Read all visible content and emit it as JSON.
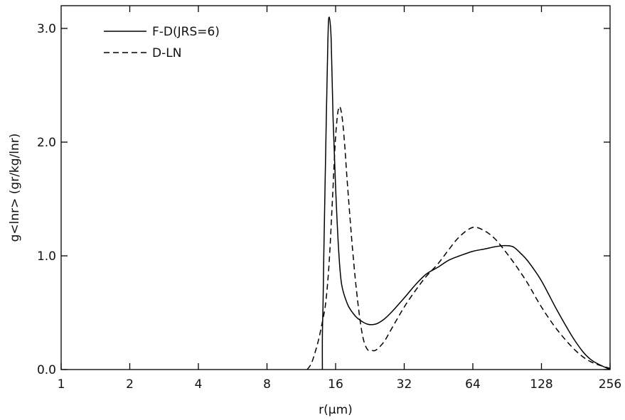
{
  "chart_data": {
    "type": "line",
    "xlabel": "r(μm)",
    "ylabel": "g<lnr> (gr/kg/lnr)",
    "xscale": "log2",
    "xlim": [
      1,
      256
    ],
    "ylim": [
      0,
      3.2
    ],
    "x_ticks": [
      1,
      2,
      4,
      8,
      16,
      32,
      64,
      128,
      256
    ],
    "x_tick_labels": [
      "1",
      "2",
      "4",
      "8",
      "16",
      "32",
      "64",
      "128",
      "256"
    ],
    "y_ticks": [
      0,
      1,
      2,
      3
    ],
    "y_tick_labels": [
      "0.0",
      "1.0",
      "2.0",
      "3.0"
    ],
    "grid": false,
    "legend_position": "top-left",
    "series": [
      {
        "name": "F-D(JRS=6)",
        "style": "solid",
        "color": "#000000",
        "x": [
          14.0,
          14.0,
          14.1,
          14.2,
          14.5,
          14.8,
          15.0,
          15.3,
          15.6,
          16.0,
          16.5,
          17.0,
          18.0,
          19.0,
          20.0,
          22.0,
          24.0,
          26.0,
          28.0,
          32.0,
          36.0,
          40.0,
          45.0,
          50.0,
          56.0,
          64.0,
          72.0,
          80.0,
          88.0,
          96.0,
          104.0,
          112.0,
          128.0,
          150.0,
          180.0,
          210.0,
          256.0
        ],
        "y": [
          0.0,
          0.3,
          0.6,
          1.0,
          2.0,
          2.9,
          3.1,
          2.9,
          2.2,
          1.6,
          1.05,
          0.75,
          0.58,
          0.5,
          0.45,
          0.4,
          0.4,
          0.44,
          0.5,
          0.63,
          0.75,
          0.84,
          0.9,
          0.96,
          1.0,
          1.04,
          1.06,
          1.08,
          1.09,
          1.08,
          1.02,
          0.95,
          0.78,
          0.52,
          0.25,
          0.09,
          0.0
        ]
      },
      {
        "name": "D-LN",
        "style": "dashed",
        "color": "#000000",
        "x": [
          12.0,
          12.5,
          13.0,
          13.5,
          14.0,
          14.5,
          15.0,
          15.5,
          16.0,
          16.5,
          17.0,
          17.5,
          18.0,
          19.0,
          20.0,
          21.0,
          22.0,
          23.0,
          24.0,
          26.0,
          28.0,
          32.0,
          36.0,
          40.0,
          45.0,
          50.0,
          56.0,
          64.0,
          72.0,
          80.0,
          88.0,
          96.0,
          104.0,
          112.0,
          128.0,
          150.0,
          180.0,
          210.0,
          256.0
        ],
        "y": [
          0.0,
          0.05,
          0.15,
          0.27,
          0.42,
          0.6,
          0.95,
          1.5,
          2.05,
          2.3,
          2.25,
          2.0,
          1.65,
          1.05,
          0.6,
          0.3,
          0.18,
          0.17,
          0.17,
          0.24,
          0.35,
          0.55,
          0.7,
          0.82,
          0.93,
          1.05,
          1.17,
          1.25,
          1.22,
          1.15,
          1.05,
          0.95,
          0.85,
          0.75,
          0.55,
          0.35,
          0.17,
          0.07,
          0.01
        ]
      }
    ]
  }
}
